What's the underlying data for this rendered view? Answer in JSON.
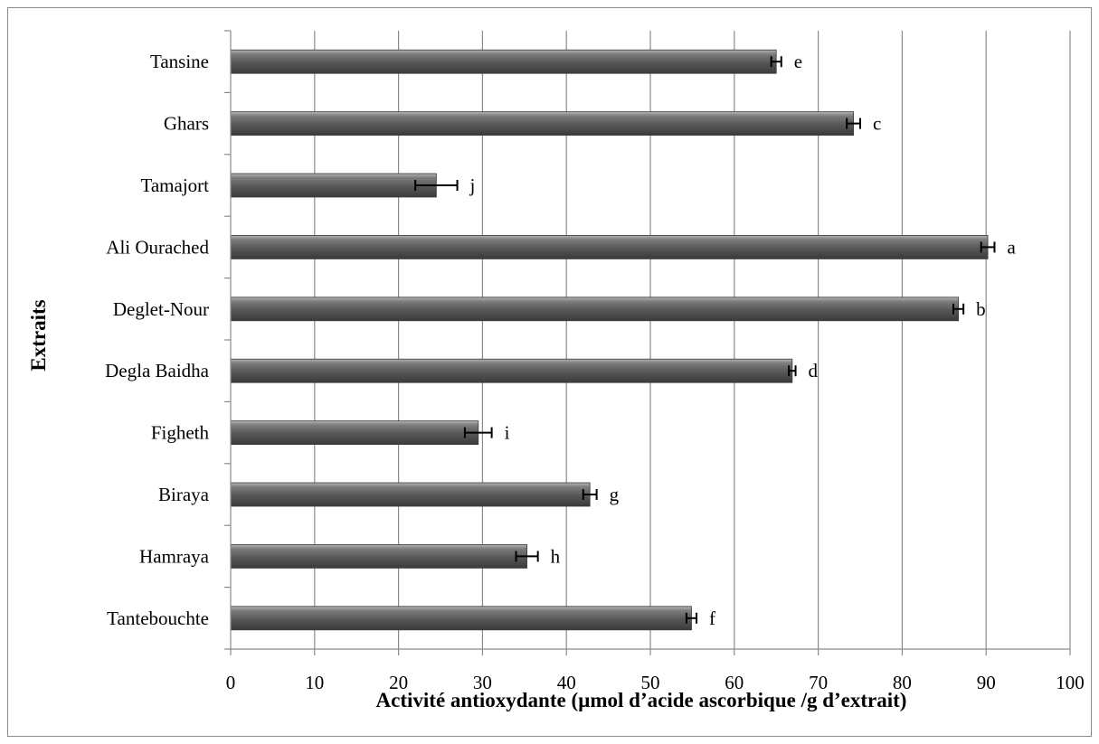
{
  "chart_data": {
    "type": "bar",
    "orientation": "horizontal",
    "xlabel": "Activité antioxydante  (µmol d’acide ascorbique /g d’extrait)",
    "ylabel": "Extraits",
    "xlim": [
      0,
      100
    ],
    "x_ticks": [
      "0",
      "10",
      "20",
      "30",
      "40",
      "50",
      "60",
      "70",
      "80",
      "90",
      "100"
    ],
    "grid": "vertical",
    "legend": "none",
    "bar_color": "#606060",
    "categories": [
      "Tansine",
      "Ghars",
      "Tamajort",
      "Ali Ourached",
      "Deglet-Nour",
      "Degla Baidha",
      "Figheth",
      "Biraya",
      "Hamraya",
      "Tantebouchte"
    ],
    "values": [
      65.0,
      74.2,
      24.5,
      90.2,
      86.7,
      66.9,
      29.5,
      42.8,
      35.3,
      54.9
    ],
    "errors": [
      0.6,
      0.8,
      2.5,
      0.8,
      0.6,
      0.4,
      1.6,
      0.8,
      1.3,
      0.6
    ],
    "significance": [
      "e",
      "c",
      "j",
      "a",
      "b",
      "d",
      "i",
      "g",
      "h",
      "f"
    ]
  }
}
